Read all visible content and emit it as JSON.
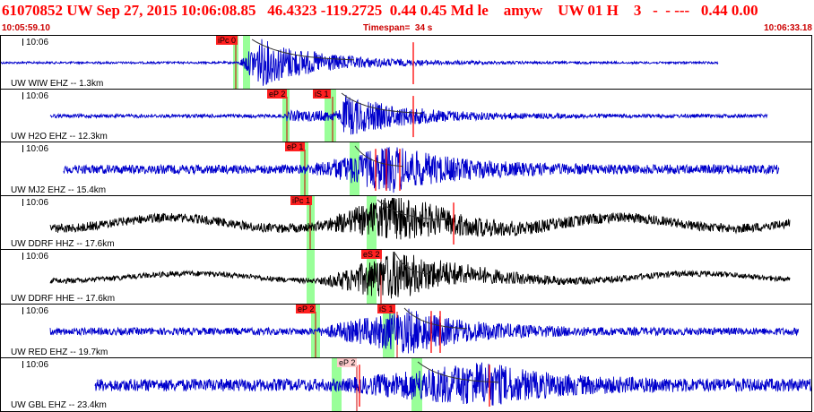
{
  "header": {
    "title": "61070852 UW Sep 27, 2015 10:06:08.85   46.4323 -119.2725  0.44 0.45 Md le    amyw    UW 01 H    3   -  - ---   0.44 0.00",
    "start_time": "10:05:59.10",
    "timespan": "Timespan=  34 s",
    "end_time": "10:06:33.18"
  },
  "traces": [
    {
      "station": "UW WIW EHZ -- 1.3km",
      "time_label": "10:06",
      "color": "#0000cc",
      "phases": [
        {
          "label": "iPc 0",
          "light": false
        }
      ]
    },
    {
      "station": "UW H2O EHZ -- 12.3km",
      "time_label": "10:06",
      "color": "#0000cc",
      "phases": [
        {
          "label": "eP 2",
          "light": false
        },
        {
          "label": "iS 1",
          "light": false
        }
      ]
    },
    {
      "station": "UW MJ2 EHZ -- 15.4km",
      "time_label": "10:06",
      "color": "#0000cc",
      "phases": [
        {
          "label": "eP 1",
          "light": false
        }
      ]
    },
    {
      "station": "UW DDRF HHZ -- 17.6km",
      "time_label": "10:06",
      "color": "#000000",
      "phases": [
        {
          "label": "iPc 1",
          "light": false
        }
      ]
    },
    {
      "station": "UW DDRF HHE -- 17.6km",
      "time_label": "10:06",
      "color": "#000000",
      "phases": [
        {
          "label": "eS 2",
          "light": false
        }
      ]
    },
    {
      "station": "UW RED EHZ -- 19.7km",
      "time_label": "10:06",
      "color": "#0000cc",
      "phases": [
        {
          "label": "eP 2",
          "light": false
        },
        {
          "label": "iS 1",
          "light": false
        }
      ]
    },
    {
      "station": "UW GBL EHZ -- 23.4km",
      "time_label": "10:06",
      "color": "#0000cc",
      "phases": [
        {
          "label": "eP 2",
          "light": true
        }
      ]
    }
  ]
}
